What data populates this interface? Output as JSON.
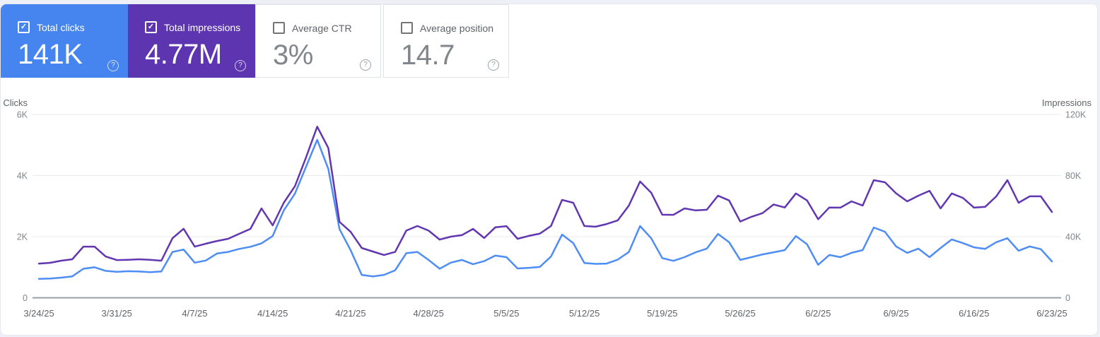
{
  "cards": [
    {
      "id": "total-clicks",
      "label": "Total clicks",
      "value": "141K",
      "checked": true,
      "bg": "#4684ef",
      "fg": "#ffffff"
    },
    {
      "id": "total-impressions",
      "label": "Total impressions",
      "value": "4.77M",
      "checked": true,
      "bg": "#5e35b1",
      "fg": "#ffffff"
    },
    {
      "id": "average-ctr",
      "label": "Average CTR",
      "value": "3%",
      "checked": false,
      "bg": "#ffffff",
      "fg": "#5f6368"
    },
    {
      "id": "average-position",
      "label": "Average position",
      "value": "14.7",
      "checked": false,
      "bg": "#ffffff",
      "fg": "#5f6368"
    }
  ],
  "help_icon_glyph": "?",
  "checkbox_glyph": "✓",
  "theme": {
    "page_bg": "#edf1f7",
    "card_bg": "#ffffff",
    "grid": "#e8eaed",
    "axis_base": "#9aa0a6",
    "tick_text": "#80868b",
    "label_text": "#5f6368"
  },
  "chart_data": {
    "type": "line",
    "x_tick_labels": [
      "3/24/25",
      "3/31/25",
      "4/7/25",
      "4/14/25",
      "4/21/25",
      "4/28/25",
      "5/5/25",
      "5/12/25",
      "5/19/25",
      "5/26/25",
      "6/2/25",
      "6/9/25",
      "6/16/25",
      "6/23/25"
    ],
    "date_range": {
      "start": "3/24/25",
      "end": "6/23/25",
      "points": 92
    },
    "left_axis": {
      "title": "Clicks",
      "tick_labels": [
        "0",
        "2K",
        "4K",
        "6K"
      ],
      "max": 6000
    },
    "right_axis": {
      "title": "Impressions",
      "tick_labels": [
        "0",
        "40K",
        "80K",
        "120K"
      ],
      "max": 120000
    },
    "grid": true,
    "legend_position": "none",
    "series": [
      {
        "name": "Clicks",
        "axis": "left",
        "color": "#4e8df5",
        "values": [
          620,
          630,
          660,
          700,
          950,
          1000,
          880,
          850,
          870,
          860,
          840,
          860,
          1500,
          1580,
          1150,
          1220,
          1450,
          1500,
          1600,
          1670,
          1780,
          2020,
          2860,
          3410,
          4290,
          5170,
          4220,
          2250,
          1560,
          750,
          700,
          750,
          900,
          1460,
          1500,
          1240,
          950,
          1150,
          1240,
          1100,
          1200,
          1380,
          1330,
          960,
          980,
          1010,
          1350,
          2070,
          1790,
          1140,
          1110,
          1120,
          1250,
          1500,
          2350,
          1950,
          1300,
          1210,
          1330,
          1490,
          1610,
          2090,
          1820,
          1240,
          1330,
          1420,
          1490,
          1560,
          2020,
          1750,
          1080,
          1400,
          1330,
          1470,
          1560,
          2300,
          2160,
          1680,
          1470,
          1610,
          1330,
          1630,
          1910,
          1790,
          1650,
          1600,
          1820,
          1950,
          1540,
          1680,
          1590,
          1190
        ]
      },
      {
        "name": "Impressions",
        "axis": "right",
        "color": "#6236b0",
        "values": [
          22400,
          22900,
          24300,
          25200,
          33500,
          33500,
          27000,
          24700,
          24900,
          25200,
          24900,
          24300,
          39000,
          45200,
          33500,
          35400,
          37200,
          38600,
          41900,
          45100,
          58500,
          47400,
          62200,
          73000,
          91900,
          112000,
          98100,
          49700,
          43200,
          32600,
          30300,
          28000,
          30000,
          44000,
          47000,
          44000,
          38100,
          40000,
          41000,
          45100,
          39100,
          46100,
          46900,
          38600,
          40500,
          42000,
          47000,
          64100,
          62200,
          47000,
          46500,
          48300,
          50700,
          60400,
          76100,
          68800,
          54400,
          54300,
          58500,
          57200,
          57600,
          66800,
          63700,
          49900,
          53000,
          55400,
          61100,
          59100,
          68300,
          63700,
          51400,
          59100,
          59000,
          63100,
          60400,
          77000,
          75600,
          68400,
          63100,
          66800,
          70000,
          58500,
          68300,
          65400,
          59000,
          59500,
          66400,
          77000,
          62200,
          66400,
          66400,
          56200
        ]
      }
    ]
  }
}
